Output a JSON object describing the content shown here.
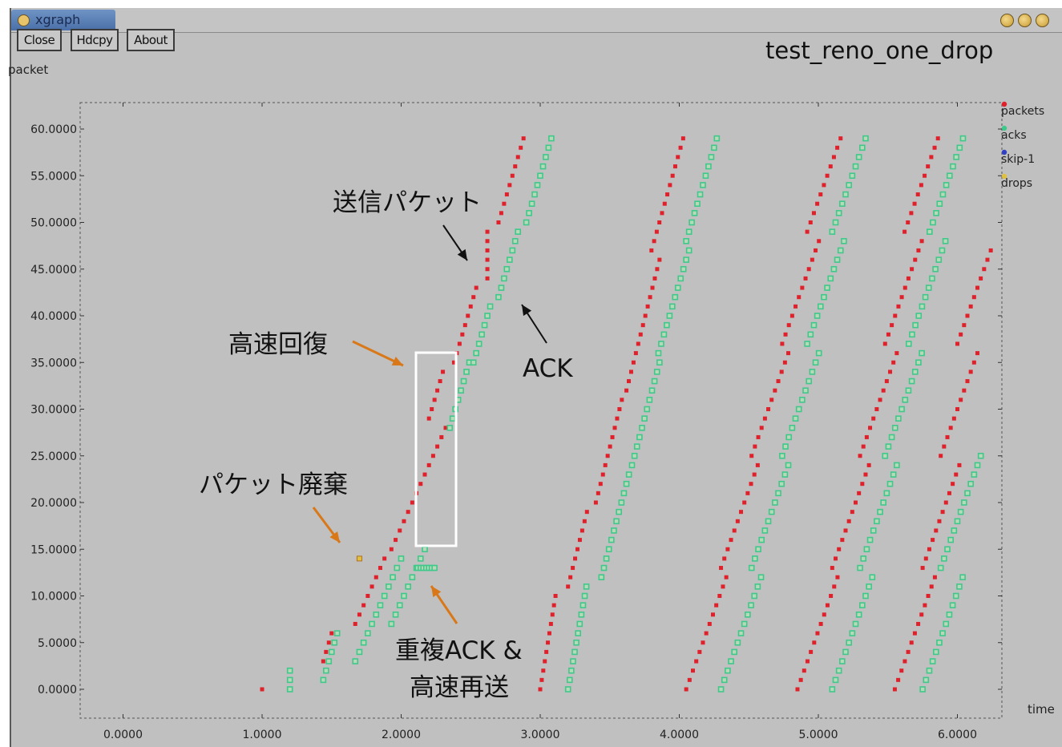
{
  "window": {
    "title": "xgraph",
    "buttons": {
      "close": "Close",
      "hdcpy": "Hdcpy",
      "about": "About"
    }
  },
  "colors": {
    "packets": "#e0202a",
    "acks": "#3ec88a",
    "skip": "#3040c0",
    "drops": "#e0c040",
    "annotation_arrow": "#d87818"
  },
  "chart_data": {
    "type": "scatter",
    "title": "test_reno_one_drop",
    "xlabel": "time",
    "ylabel": "packet",
    "xlim": [
      -0.3,
      6.3
    ],
    "ylim": [
      -2.8,
      63
    ],
    "x_ticks": [
      "0.0000",
      "1.0000",
      "2.0000",
      "3.0000",
      "4.0000",
      "5.0000",
      "6.0000"
    ],
    "y_ticks": [
      "0.0000",
      "5.0000",
      "10.0000",
      "15.0000",
      "20.0000",
      "25.0000",
      "30.0000",
      "35.0000",
      "40.0000",
      "45.0000",
      "50.0000",
      "55.0000",
      "60.0000"
    ],
    "legend": [
      "packets",
      "acks",
      "skip-1",
      "drops"
    ],
    "legend_position": "right",
    "series": [
      {
        "name": "packets",
        "marker": "square",
        "runs": [
          [
            1.0,
            0,
            0,
            0.0
          ],
          [
            1.2,
            1,
            2,
            0.0
          ],
          [
            1.44,
            3,
            6,
            0.02
          ],
          [
            1.67,
            7,
            14,
            0.03
          ],
          [
            1.93,
            15,
            28,
            0.03
          ],
          [
            2.2,
            29,
            34,
            0.02
          ],
          [
            2.38,
            35,
            43,
            0.02
          ],
          [
            2.62,
            44,
            49,
            0.0
          ],
          [
            2.7,
            50,
            59,
            0.02
          ],
          [
            3.0,
            0,
            10,
            0.011
          ],
          [
            3.2,
            11,
            19,
            0.017
          ],
          [
            3.4,
            20,
            31,
            0.017
          ],
          [
            3.62,
            32,
            46,
            0.017
          ],
          [
            3.8,
            47,
            59,
            0.019
          ],
          [
            4.05,
            0,
            12,
            0.024
          ],
          [
            4.3,
            13,
            24,
            0.024
          ],
          [
            4.52,
            25,
            36,
            0.024
          ],
          [
            4.74,
            37,
            48,
            0.024
          ],
          [
            4.92,
            49,
            59,
            0.024
          ],
          [
            4.85,
            0,
            12,
            0.024
          ],
          [
            5.1,
            13,
            24,
            0.024
          ],
          [
            5.3,
            25,
            36,
            0.024
          ],
          [
            5.48,
            37,
            48,
            0.024
          ],
          [
            5.62,
            49,
            59,
            0.024
          ],
          [
            5.55,
            0,
            12,
            0.024
          ],
          [
            5.75,
            13,
            24,
            0.024
          ],
          [
            5.88,
            25,
            36,
            0.024
          ],
          [
            6.0,
            37,
            47,
            0.024
          ]
        ]
      },
      {
        "name": "acks",
        "marker": "hollow-square",
        "runs": [
          [
            1.2,
            0,
            2,
            0.0
          ],
          [
            1.44,
            1,
            6,
            0.02
          ],
          [
            1.67,
            3,
            14,
            0.03
          ],
          [
            1.93,
            7,
            15,
            0.03
          ],
          [
            2.12,
            13,
            13,
            0.0
          ],
          [
            2.14,
            13,
            13,
            0.0
          ],
          [
            2.16,
            13,
            13,
            0.0
          ],
          [
            2.18,
            13,
            13,
            0.0
          ],
          [
            2.2,
            13,
            13,
            0.0
          ],
          [
            2.22,
            13,
            13,
            0.0
          ],
          [
            2.24,
            13,
            13,
            0.0
          ],
          [
            2.35,
            28,
            35,
            0.02
          ],
          [
            2.52,
            35,
            41,
            0.02
          ],
          [
            2.7,
            42,
            49,
            0.02
          ],
          [
            2.9,
            50,
            59,
            0.02
          ],
          [
            3.2,
            0,
            11,
            0.012
          ],
          [
            3.44,
            12,
            23,
            0.018
          ],
          [
            3.66,
            24,
            35,
            0.018
          ],
          [
            3.85,
            36,
            47,
            0.02
          ],
          [
            4.05,
            48,
            59,
            0.02
          ],
          [
            4.3,
            0,
            12,
            0.024
          ],
          [
            4.52,
            13,
            24,
            0.024
          ],
          [
            4.74,
            25,
            36,
            0.024
          ],
          [
            4.92,
            37,
            48,
            0.024
          ],
          [
            5.1,
            49,
            59,
            0.024
          ],
          [
            5.1,
            0,
            12,
            0.024
          ],
          [
            5.3,
            13,
            24,
            0.024
          ],
          [
            5.48,
            25,
            36,
            0.024
          ],
          [
            5.65,
            37,
            48,
            0.024
          ],
          [
            5.8,
            49,
            59,
            0.024
          ],
          [
            5.75,
            0,
            12,
            0.024
          ],
          [
            5.88,
            13,
            25,
            0.024
          ]
        ]
      },
      {
        "name": "drops",
        "marker": "square",
        "points": [
          [
            1.7,
            14
          ]
        ]
      }
    ],
    "annotations": [
      {
        "text": "送信パケット"
      },
      {
        "text": "ACK"
      },
      {
        "text": "高速回復"
      },
      {
        "text": "パケット廃棄"
      },
      {
        "text": "重複ACK &"
      },
      {
        "text": "高速再送"
      }
    ]
  }
}
